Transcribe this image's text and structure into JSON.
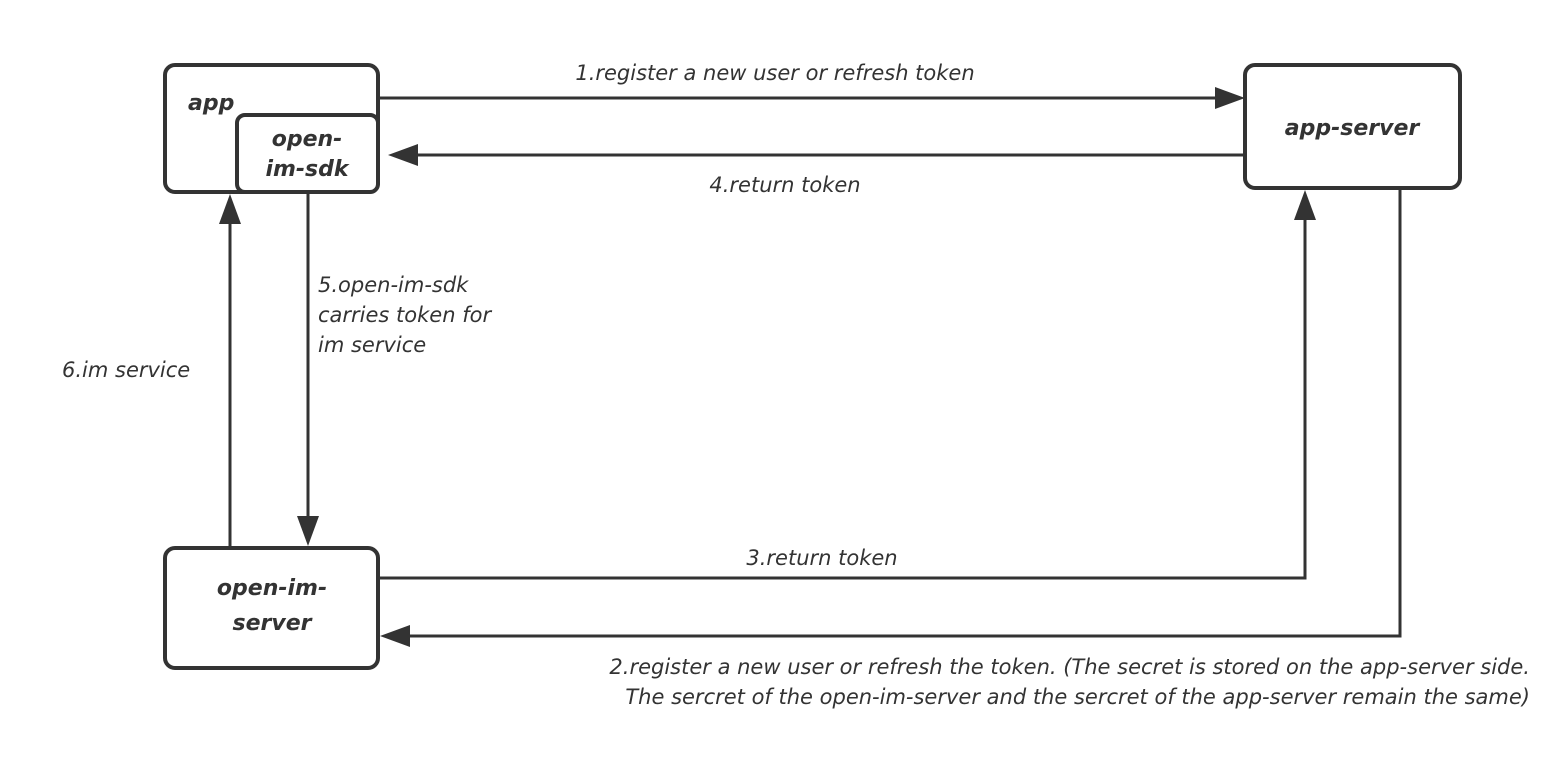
{
  "nodes": {
    "app": "app",
    "sdk": [
      "open-",
      "im-sdk"
    ],
    "app_server": "app-server",
    "im_server": [
      "open-im-",
      "server"
    ]
  },
  "edges": {
    "e1": "1.register a new user or refresh token",
    "e2": [
      "2.register a new user or refresh the token. (The secret is stored on the app-server side.",
      "The sercret of the open-im-server and the sercret of the app-server remain the same)"
    ],
    "e3": "3.return token",
    "e4": "4.return token",
    "e5": [
      "5.open-im-sdk",
      "carries token for",
      "im service"
    ],
    "e6": "6.im service"
  },
  "colors": {
    "stroke": "#333333",
    "background": "#ffffff"
  }
}
